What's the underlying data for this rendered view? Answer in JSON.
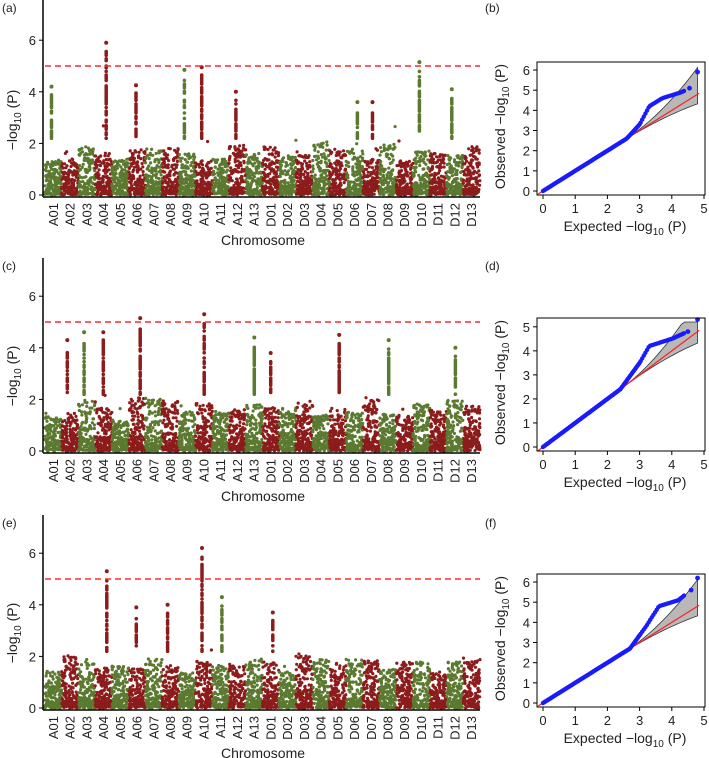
{
  "chart_data": [
    {
      "panel": "(a)",
      "type": "scatter",
      "subtype": "manhattan",
      "xlabel": "Chromosome",
      "ylabel": [
        "−log",
        "10",
        " (P)"
      ],
      "ylim": [
        0,
        7.5
      ],
      "yticks": [
        0,
        2,
        4,
        6
      ],
      "threshold": 5,
      "chromosomes": [
        "A01",
        "A02",
        "A03",
        "A04",
        "A05",
        "A06",
        "A07",
        "A08",
        "A09",
        "A10",
        "A11",
        "A12",
        "A13",
        "D01",
        "D02",
        "D03",
        "D04",
        "D05",
        "D06",
        "D07",
        "D08",
        "D09",
        "D10",
        "D11",
        "D12",
        "D13"
      ],
      "peaks": [
        {
          "chr": "A01",
          "value": 4.2
        },
        {
          "chr": "A04",
          "value": 5.9
        },
        {
          "chr": "A06",
          "value": 4.25
        },
        {
          "chr": "A09",
          "value": 4.85
        },
        {
          "chr": "A10",
          "value": 4.95
        },
        {
          "chr": "A12",
          "value": 4.0
        },
        {
          "chr": "D06",
          "value": 3.6
        },
        {
          "chr": "D07",
          "value": 3.6
        },
        {
          "chr": "D10",
          "value": 5.15
        },
        {
          "chr": "D12",
          "value": 4.1
        }
      ]
    },
    {
      "panel": "(b)",
      "type": "scatter",
      "subtype": "qq",
      "xlabel": [
        "Expected −log",
        "10",
        " (P)"
      ],
      "ylabel": [
        "Observed −log",
        "10",
        " (P)"
      ],
      "xlim": [
        0,
        5
      ],
      "ylim": [
        0,
        6
      ],
      "xticks": [
        0,
        1,
        2,
        3,
        4,
        5
      ],
      "yticks": [
        0,
        1,
        2,
        3,
        4,
        5,
        6
      ],
      "observed": [
        [
          0,
          0
        ],
        [
          2.6,
          2.6
        ],
        [
          3.0,
          3.3
        ],
        [
          3.3,
          4.2
        ],
        [
          3.7,
          4.6
        ],
        [
          4.3,
          4.9
        ],
        [
          4.55,
          5.1
        ],
        [
          4.8,
          5.9
        ]
      ]
    },
    {
      "panel": "(c)",
      "type": "scatter",
      "subtype": "manhattan",
      "xlabel": "Chromosome",
      "ylabel": [
        "−log",
        "10",
        " (P)"
      ],
      "ylim": [
        0,
        7.5
      ],
      "yticks": [
        0,
        2,
        4,
        6
      ],
      "threshold": 5,
      "peaks": [
        {
          "chr": "A02",
          "value": 4.3
        },
        {
          "chr": "A03",
          "value": 4.6
        },
        {
          "chr": "A04",
          "value": 4.6
        },
        {
          "chr": "A06",
          "value": 5.15
        },
        {
          "chr": "A10",
          "value": 5.3
        },
        {
          "chr": "A13",
          "value": 4.4
        },
        {
          "chr": "D01",
          "value": 3.8
        },
        {
          "chr": "D05",
          "value": 4.5
        },
        {
          "chr": "D08",
          "value": 4.3
        },
        {
          "chr": "D12",
          "value": 4.0
        }
      ]
    },
    {
      "panel": "(d)",
      "type": "scatter",
      "subtype": "qq",
      "xlabel": [
        "Expected −log",
        "10",
        " (P)"
      ],
      "ylabel": [
        "Observed −log",
        "10",
        " (P)"
      ],
      "xlim": [
        0,
        5
      ],
      "ylim": [
        0,
        5
      ],
      "xticks": [
        0,
        1,
        2,
        3,
        4,
        5
      ],
      "yticks": [
        0,
        1,
        2,
        3,
        4,
        5
      ],
      "observed": [
        [
          0,
          0
        ],
        [
          2.4,
          2.4
        ],
        [
          3.0,
          3.5
        ],
        [
          3.3,
          4.2
        ],
        [
          4.0,
          4.5
        ],
        [
          4.5,
          4.8
        ],
        [
          4.8,
          5.3
        ]
      ]
    },
    {
      "panel": "(e)",
      "type": "scatter",
      "subtype": "manhattan",
      "xlabel": "Chromosome",
      "ylabel": [
        "−log",
        "10",
        " (P)"
      ],
      "ylim": [
        0,
        7.5
      ],
      "yticks": [
        0,
        2,
        4,
        6
      ],
      "threshold": 5,
      "peaks": [
        {
          "chr": "A04",
          "value": 5.3
        },
        {
          "chr": "A06",
          "value": 3.9
        },
        {
          "chr": "A08",
          "value": 4.0
        },
        {
          "chr": "A10",
          "value": 6.2
        },
        {
          "chr": "A11",
          "value": 4.3
        },
        {
          "chr": "D01",
          "value": 3.7
        }
      ]
    },
    {
      "panel": "(f)",
      "type": "scatter",
      "subtype": "qq",
      "xlabel": [
        "Expected −log",
        "10",
        " (P)"
      ],
      "ylabel": [
        "Observed −log",
        "10",
        " (P)"
      ],
      "xlim": [
        0,
        5
      ],
      "ylim": [
        0,
        6
      ],
      "xticks": [
        0,
        1,
        2,
        3,
        4,
        5
      ],
      "yticks": [
        0,
        1,
        2,
        3,
        4,
        5,
        6
      ],
      "observed": [
        [
          0,
          0
        ],
        [
          2.7,
          2.7
        ],
        [
          3.2,
          3.8
        ],
        [
          3.6,
          4.8
        ],
        [
          4.2,
          5.1
        ],
        [
          4.6,
          5.6
        ],
        [
          4.8,
          6.2
        ]
      ]
    }
  ],
  "colors": {
    "chr_odd": "#5b7a30",
    "chr_even": "#8c1c1c",
    "threshold": "#ff2a2a",
    "qq_points": "#1a1aff",
    "qq_line": "#ff2020",
    "ci": "#b8b8b8"
  }
}
